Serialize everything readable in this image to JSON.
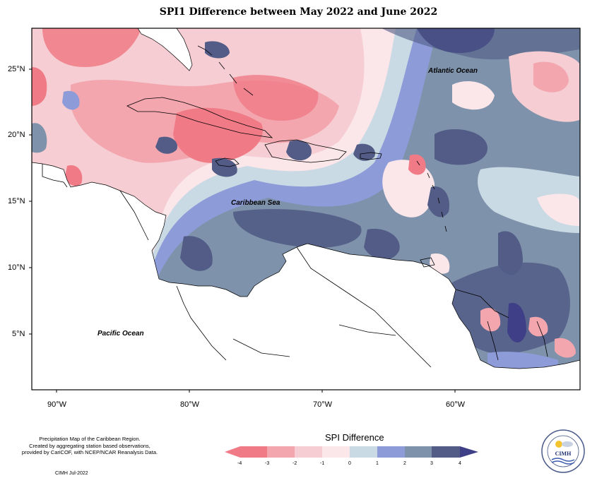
{
  "title": "SPI1 Difference between May 2022 and June 2022",
  "map": {
    "lat_ticks": [
      "25°N",
      "20°N",
      "15°N",
      "10°N",
      "5°N"
    ],
    "lon_ticks": [
      "90°W",
      "80°W",
      "70°W",
      "60°W"
    ],
    "labels": {
      "atlantic": "Atlantic Ocean",
      "caribbean": "Caribbean Sea",
      "pacific": "Pacific Ocean"
    }
  },
  "legend": {
    "title": "SPI Difference",
    "ticks": [
      "-4",
      "-3",
      "-2",
      "-1",
      "0",
      "1",
      "2",
      "3",
      "4"
    ],
    "colors": [
      "#f07b86",
      "#f3a6ae",
      "#f5cdd2",
      "#fbe6e9",
      "#c9dae4",
      "#8d9bd8",
      "#7e93ab",
      "#525c86",
      "#3e3f86"
    ]
  },
  "footnote": {
    "line1": "Precipitation Map of the Caribbean Region.",
    "line2": "Created by aggregating station based observations,",
    "line3": "provided by CariCOF, with NCEP/NCAR Reanalysis Data.",
    "credit": "CIMH Jul-2022"
  },
  "logo": {
    "text": "CIMH"
  }
}
